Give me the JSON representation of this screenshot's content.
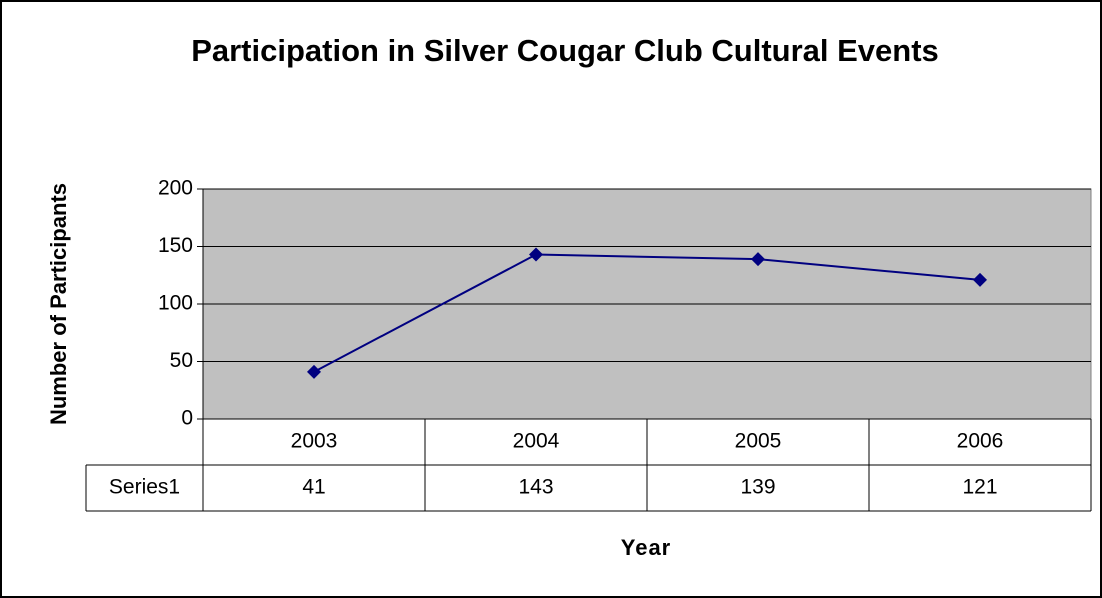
{
  "chart_data": {
    "type": "line",
    "title": "Participation in Silver Cougar Club Cultural Events",
    "x_label": "Year",
    "y_label": "Number of Participants",
    "categories": [
      "2003",
      "2004",
      "2005",
      "2006"
    ],
    "series": [
      {
        "name": "Series1",
        "color": "#000080",
        "values": [
          41,
          143,
          139,
          121
        ]
      }
    ],
    "ylim": [
      0,
      200
    ],
    "yticks": [
      0,
      50,
      100,
      150,
      200
    ],
    "grid": true,
    "plot_background": "#c0c0c0",
    "data_table": true
  }
}
